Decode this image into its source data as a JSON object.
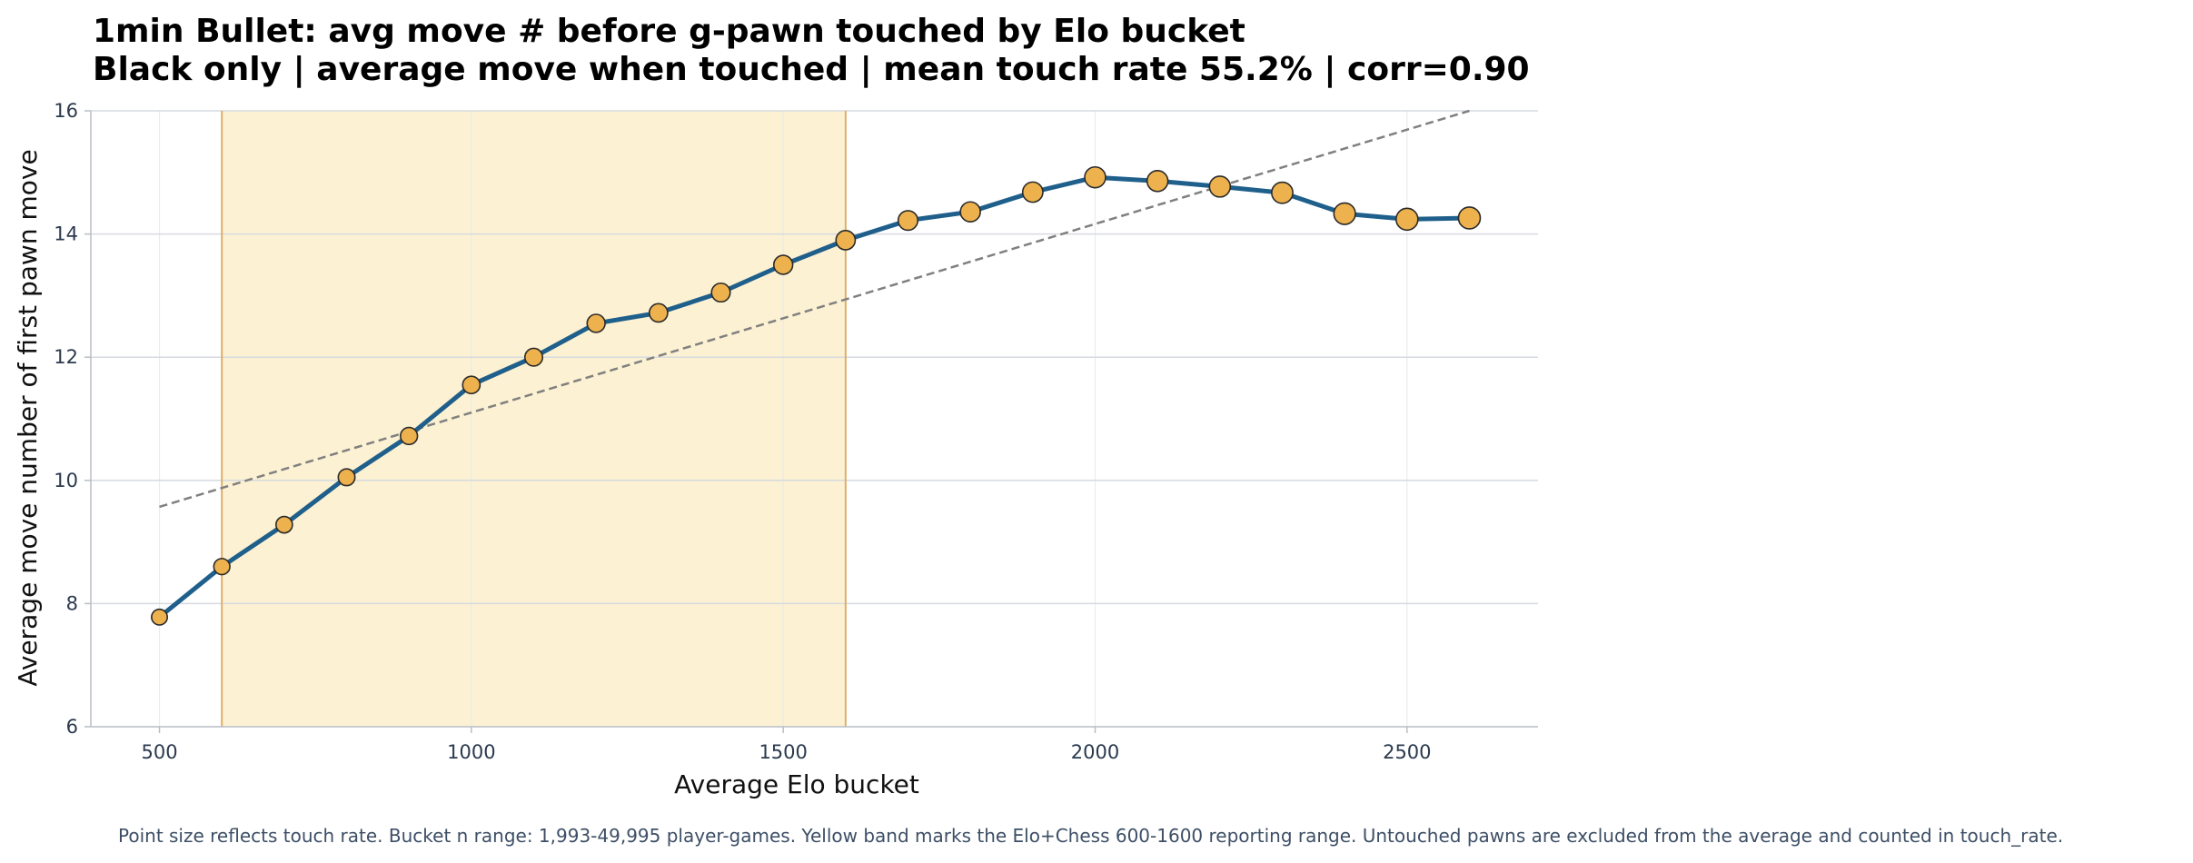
{
  "chart_data": {
    "type": "line",
    "title": "1min Bullet: avg move # before g-pawn touched by Elo bucket",
    "subtitle": "Black only | average move when touched | mean touch rate 55.2% | corr=0.90",
    "xlabel": "Average Elo bucket",
    "ylabel": "Average move number of first pawn move",
    "xlim": [
      390,
      2710
    ],
    "ylim": [
      6,
      16
    ],
    "x_ticks": [
      500,
      1000,
      1500,
      2000,
      2500
    ],
    "y_ticks": [
      6,
      8,
      10,
      12,
      14,
      16
    ],
    "grid": true,
    "band": {
      "x_start": 600,
      "x_end": 1600,
      "color": "#fcf1d2",
      "edge_color": "#dfae68"
    },
    "series": [
      {
        "x": [
          500,
          600,
          700,
          800,
          900,
          1000,
          1100,
          1200,
          1300,
          1400,
          1500,
          1600,
          1700,
          1800,
          1900,
          2000,
          2100,
          2200,
          2300,
          2400,
          2500,
          2600
        ],
        "values": [
          7.78,
          8.6,
          9.28,
          10.05,
          10.72,
          11.55,
          12.0,
          12.55,
          12.72,
          13.05,
          13.5,
          13.9,
          14.22,
          14.36,
          14.68,
          14.92,
          14.86,
          14.77,
          14.67,
          14.33,
          14.24,
          14.26
        ],
        "touch_rate_rank": [
          0.05,
          0.1,
          0.15,
          0.2,
          0.25,
          0.3,
          0.35,
          0.4,
          0.45,
          0.5,
          0.55,
          0.6,
          0.65,
          0.7,
          0.75,
          0.85,
          0.85,
          0.85,
          0.9,
          0.95,
          1.0,
          1.0
        ],
        "line_color": "#1f5f8b",
        "marker_color": "#edb24e"
      }
    ],
    "trendline": {
      "x": [
        500,
        2600
      ],
      "y": [
        9.57,
        16.0
      ],
      "color": "#808080",
      "style": "dashed"
    },
    "footnote": "Point size reflects touch rate. Bucket n range: 1,993-49,995 player-games. Yellow band marks the Elo+Chess 600-1600 reporting range. Untouched pawns are excluded from the average and counted in touch_rate."
  }
}
